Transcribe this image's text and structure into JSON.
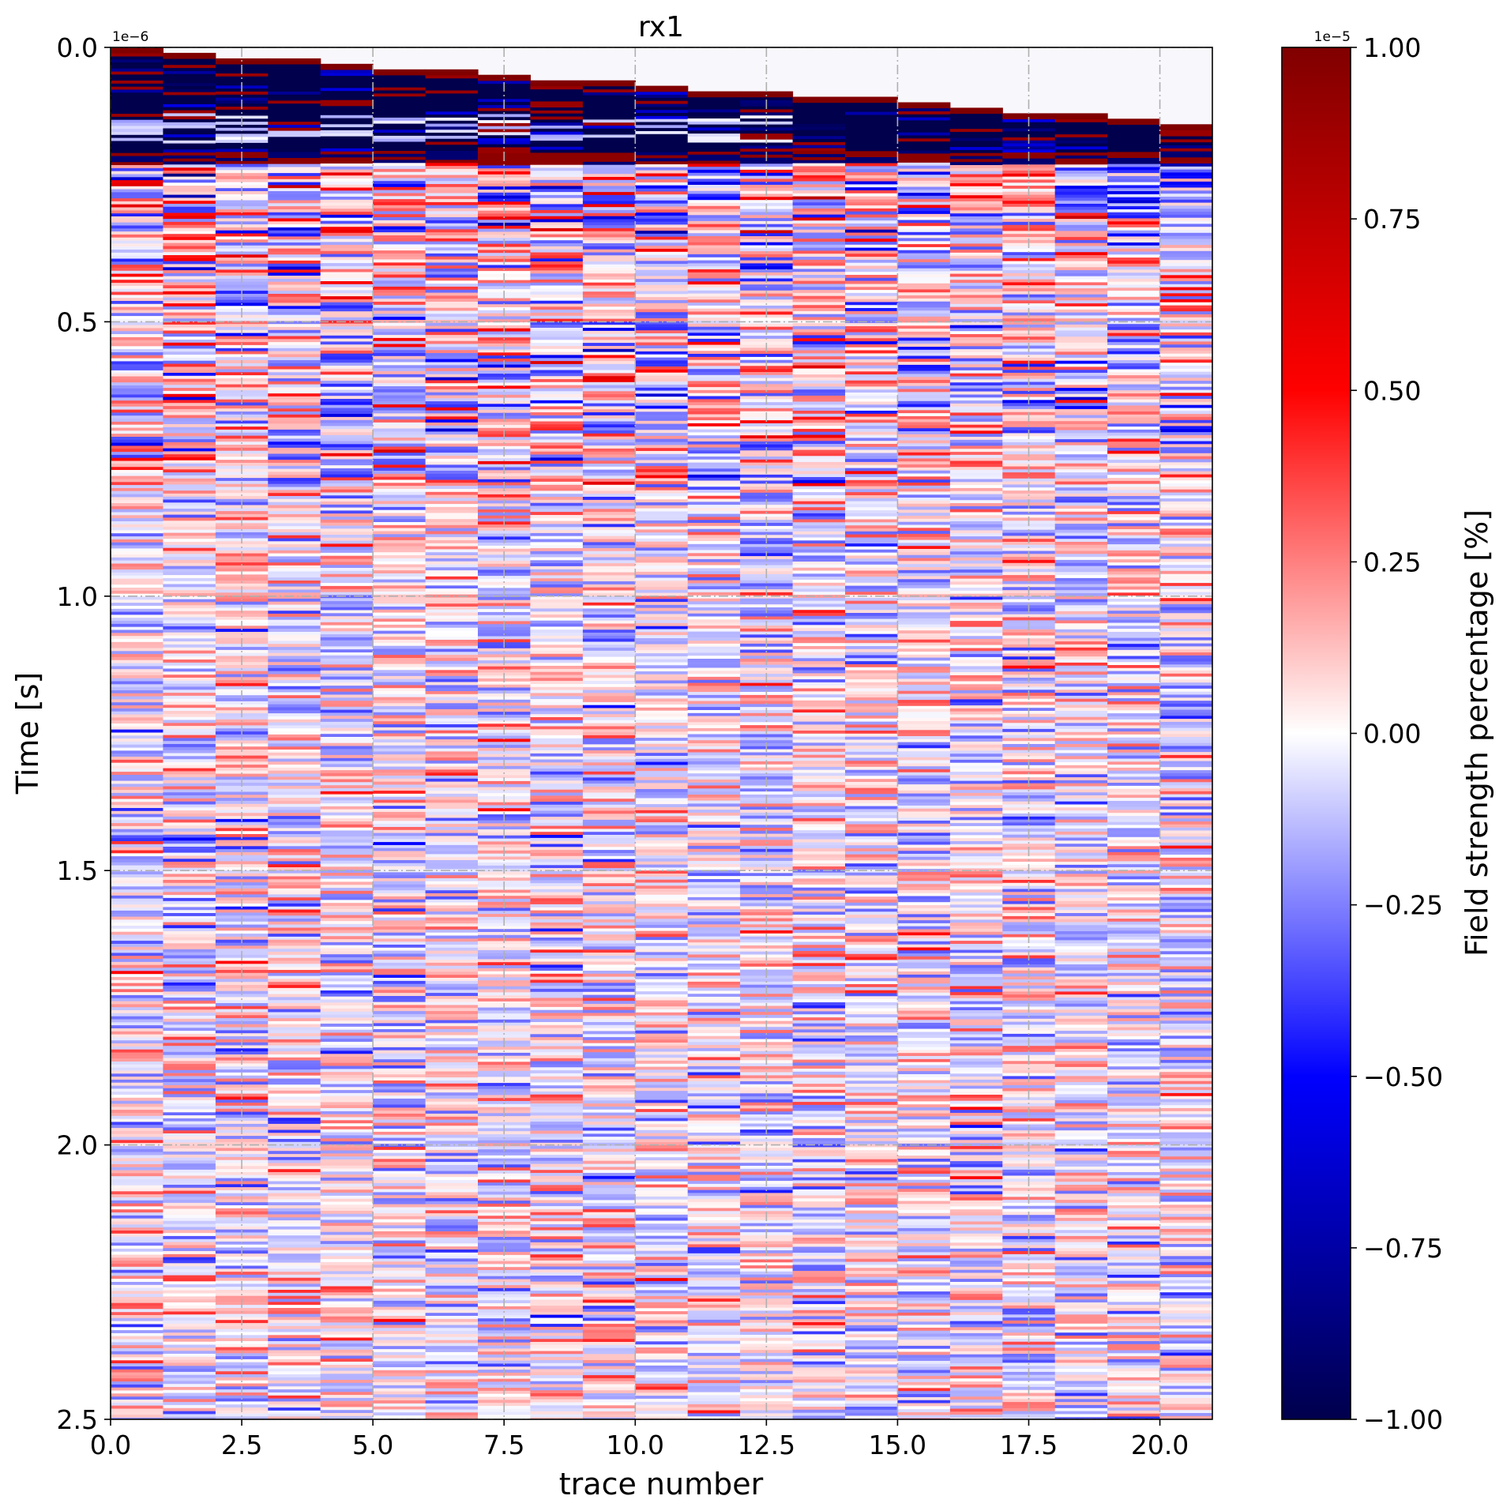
{
  "chart_data": {
    "type": "heatmap",
    "title": "rx1",
    "xlabel": "trace number",
    "ylabel": "Time [s]",
    "x_tick_labels": [
      "0.0",
      "2.5",
      "5.0",
      "7.5",
      "10.0",
      "12.5",
      "15.0",
      "17.5",
      "20.0"
    ],
    "x_ticks": [
      0,
      2.5,
      5,
      7.5,
      10,
      12.5,
      15,
      17.5,
      20
    ],
    "xlim": [
      0,
      21
    ],
    "y_tick_labels": [
      "0.0",
      "0.5",
      "1.0",
      "1.5",
      "2.0",
      "2.5"
    ],
    "y_ticks": [
      0,
      0.5,
      1.0,
      1.5,
      2.0,
      2.5
    ],
    "ylim": [
      2.5,
      0
    ],
    "y_axis_inverted": true,
    "y_offset_label": "1e−6",
    "y_scale": 1e-06,
    "grid": true,
    "grid_style": "dash-dot",
    "n_traces": 21,
    "first_arrival_per_trace": [
      0.0,
      0.01,
      0.02,
      0.02,
      0.03,
      0.04,
      0.04,
      0.05,
      0.06,
      0.06,
      0.07,
      0.08,
      0.08,
      0.09,
      0.09,
      0.1,
      0.11,
      0.12,
      0.12,
      0.13,
      0.14
    ],
    "direct_wave_end": 0.2,
    "colormap": "seismic",
    "colorbar": {
      "label": "Field strength percentage [%]",
      "offset_label": "1e−5",
      "scale": 1e-05,
      "vmin": -1.0,
      "vmax": 1.0,
      "tick_values": [
        -1.0,
        -0.75,
        -0.5,
        -0.25,
        0.0,
        0.25,
        0.5,
        0.75,
        1.0
      ],
      "tick_labels": [
        "−1.00",
        "−0.75",
        "−0.50",
        "−0.25",
        "0.00",
        "0.25",
        "0.50",
        "0.75",
        "1.00"
      ]
    },
    "colors": {
      "min": "#00004c",
      "blue": "#0000ff",
      "zero": "#ffffff",
      "red": "#ff0000",
      "max": "#800000",
      "grid": "#b0b0b0",
      "above_first_arrival": "#f8f8fc"
    }
  }
}
